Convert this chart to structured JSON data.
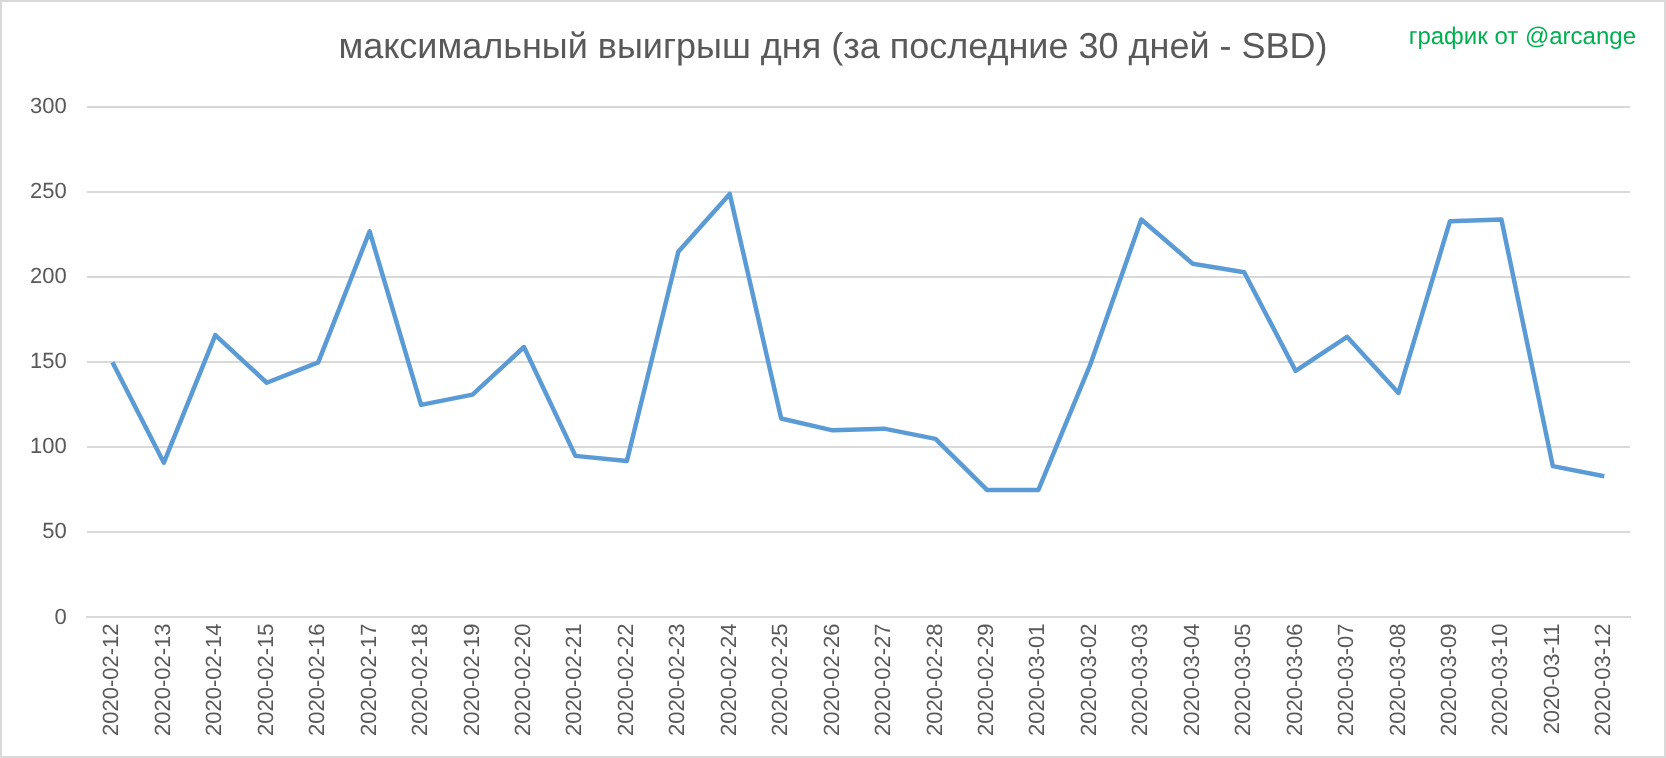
{
  "chart_data": {
    "type": "line",
    "title": "максимальный выигрыш дня (за последние 30 дней - SBD)",
    "annotations": [
      "график от @arcange"
    ],
    "categories": [
      "2020-02-12",
      "2020-02-13",
      "2020-02-14",
      "2020-02-15",
      "2020-02-16",
      "2020-02-17",
      "2020-02-18",
      "2020-02-19",
      "2020-02-20",
      "2020-02-21",
      "2020-02-22",
      "2020-02-23",
      "2020-02-24",
      "2020-02-25",
      "2020-02-26",
      "2020-02-27",
      "2020-02-28",
      "2020-02-29",
      "2020-03-01",
      "2020-03-02",
      "2020-03-03",
      "2020-03-04",
      "2020-03-05",
      "2020-03-06",
      "2020-03-07",
      "2020-03-08",
      "2020-03-09",
      "2020-03-10",
      "2020-03-11",
      "2020-03-12"
    ],
    "series": [
      {
        "color": "#5b9bd5",
        "values": [
          150,
          91,
          166,
          138,
          150,
          227,
          125,
          131,
          159,
          95,
          92,
          215,
          249,
          117,
          110,
          111,
          105,
          75,
          75,
          148,
          234,
          208,
          203,
          145,
          165,
          132,
          233,
          234,
          89,
          83
        ]
      }
    ],
    "ylim": [
      0,
      300
    ],
    "yticks": [
      0,
      50,
      100,
      150,
      200,
      250,
      300
    ],
    "grid": "y",
    "legend": false,
    "marker": "none",
    "line_style": "solid"
  }
}
